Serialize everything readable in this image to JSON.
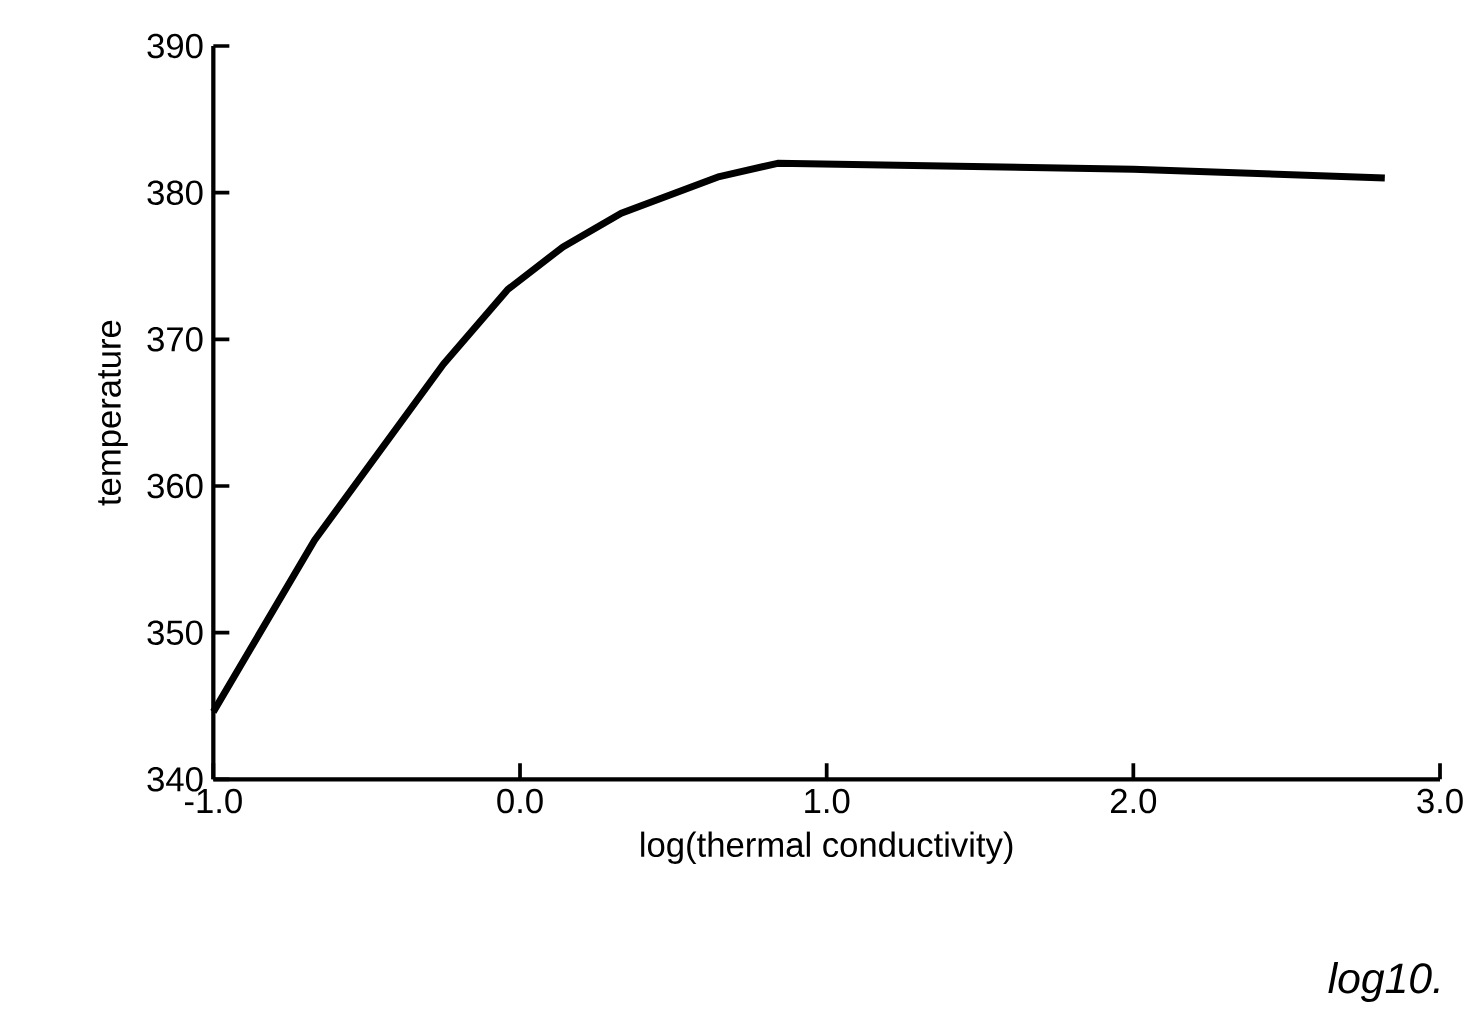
{
  "chart_data": {
    "type": "line",
    "xlabel": "log(thermal   conductivity)",
    "ylabel": "temperature",
    "x": [
      -1.0,
      -0.67,
      -0.25,
      -0.04,
      0.14,
      0.33,
      0.65,
      0.84,
      2.0,
      2.82
    ],
    "values": [
      344.6,
      356.3,
      368.3,
      373.4,
      376.3,
      378.6,
      381.1,
      382.0,
      381.6,
      381.0
    ],
    "color": "#000000",
    "xlim": [
      -1.0,
      3.0
    ],
    "ylim": [
      340,
      390
    ],
    "xticks": [
      {
        "value": -1.0,
        "label": "-1.0"
      },
      {
        "value": 0.0,
        "label": "0.0"
      },
      {
        "value": 1.0,
        "label": "1.0"
      },
      {
        "value": 2.0,
        "label": "2.0"
      },
      {
        "value": 3.0,
        "label": "3.0"
      }
    ],
    "yticks": [
      340,
      350,
      360,
      370,
      380,
      390
    ],
    "annotations": [
      "log10."
    ],
    "marker": "none",
    "line_style": "solid"
  }
}
